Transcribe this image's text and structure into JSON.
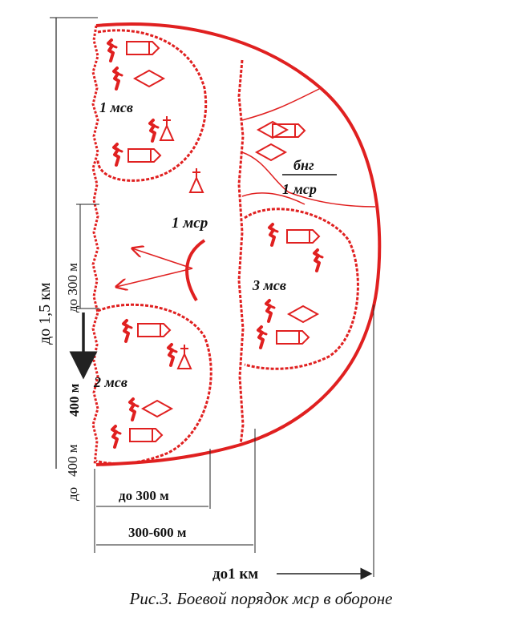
{
  "colors": {
    "formation": "#e02020",
    "dimension": "#222222",
    "background": "#ffffff"
  },
  "units": {
    "msv1": "1 мсв",
    "msv2": "2 мсв",
    "msv3": "3 мсв",
    "msr": "1 мср",
    "bng_top": "бнг",
    "bng_bottom": "1 мср"
  },
  "dimensions": {
    "depth_left": "до 1,5 км",
    "gap_upper": "до 300 м",
    "gap_400": "400 м",
    "gap_lower": "400 м",
    "gap_do": "до",
    "width_300": "до 300 м",
    "width_300_600": "300-600 м",
    "width_1km": "до1 км"
  },
  "caption": "Рис.3. Боевой порядок мср в обороне",
  "icons": [
    "fighting-vehicle-icon",
    "soldier-icon",
    "command-post-icon",
    "flag-post-icon"
  ]
}
